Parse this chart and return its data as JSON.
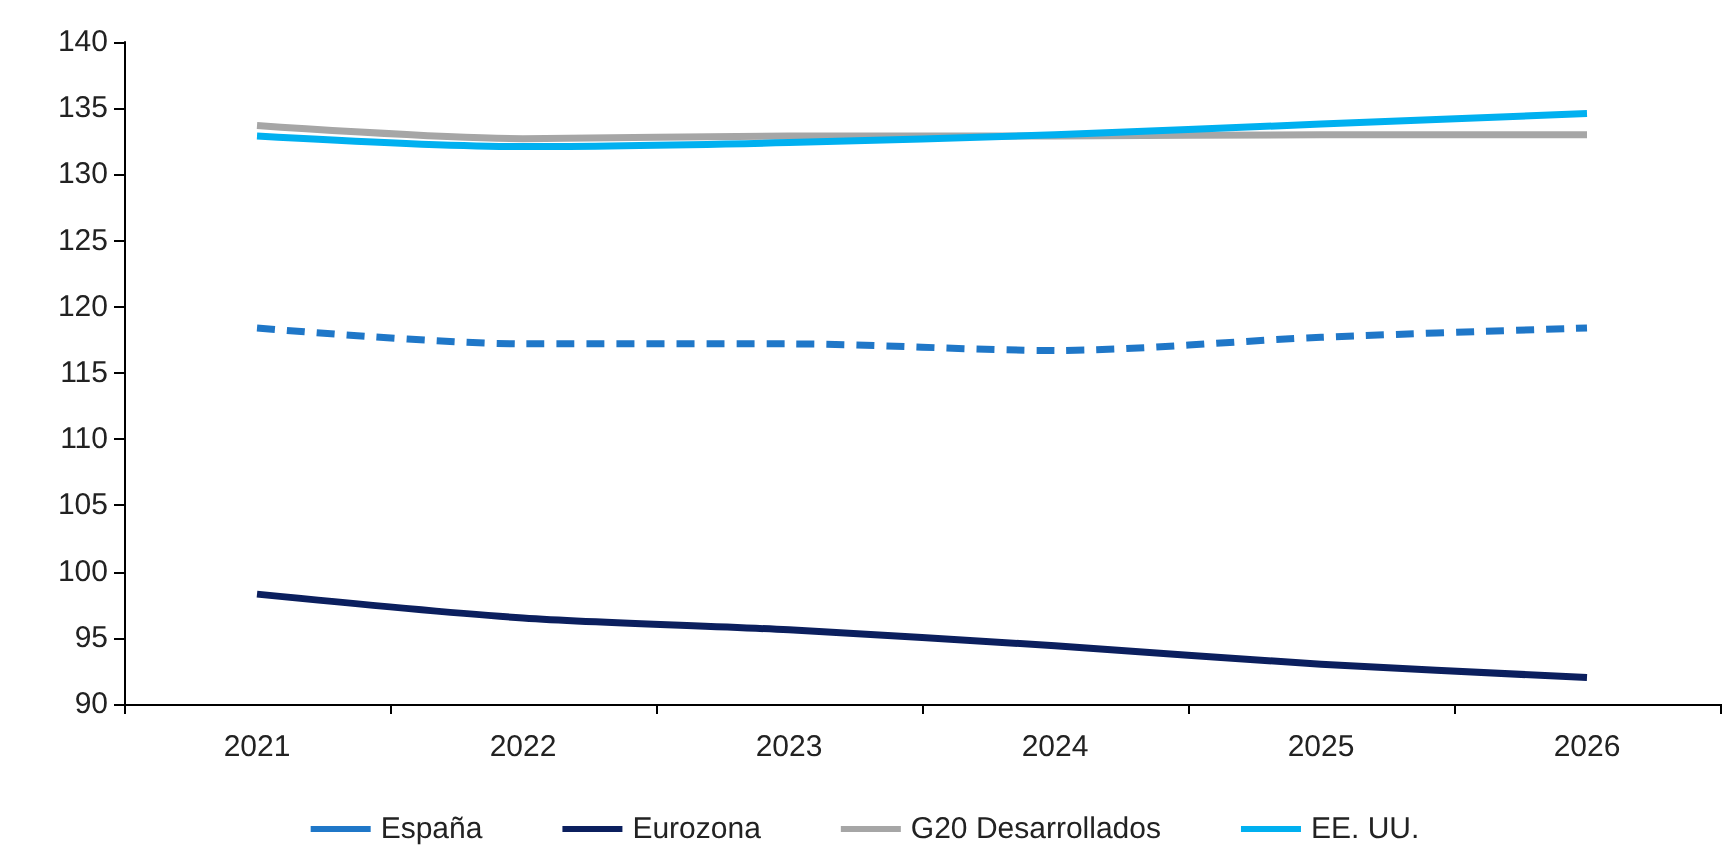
{
  "chart_data": {
    "type": "line",
    "categories": [
      "2021",
      "2022",
      "2023",
      "2024",
      "2025",
      "2026"
    ],
    "series": [
      {
        "name": "España",
        "color": "#1f77c8",
        "line_style": "dashed",
        "values": [
          118.4,
          117.2,
          117.2,
          116.7,
          117.7,
          118.4
        ]
      },
      {
        "name": "Eurozona",
        "color": "#0b1f5e",
        "values": [
          98.3,
          96.5,
          95.6,
          94.4,
          93.0,
          92.0
        ]
      },
      {
        "name": "G20 Desarrollados",
        "color": "#a6a6a6",
        "values": [
          133.7,
          132.7,
          132.9,
          132.9,
          133.0,
          133.0
        ]
      },
      {
        "name": "EE. UU.",
        "color": "#00b0f0",
        "values": [
          132.9,
          132.1,
          132.4,
          133.0,
          133.8,
          134.6
        ]
      }
    ],
    "ylim": [
      90,
      140
    ],
    "yticks": [
      90,
      95,
      100,
      105,
      110,
      115,
      120,
      125,
      130,
      135,
      140
    ],
    "grid": false,
    "legend": "bottom",
    "marker": "none",
    "line_style": "solid"
  }
}
